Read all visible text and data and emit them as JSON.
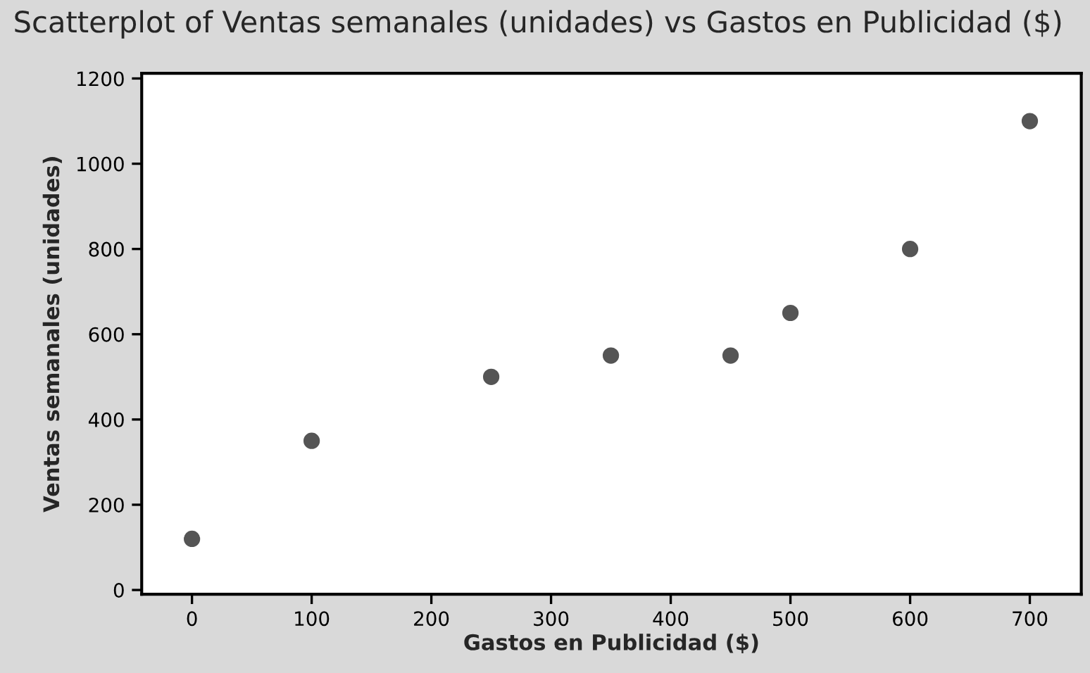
{
  "chart_data": {
    "type": "scatter",
    "title": "Scatterplot of Ventas semanales (unidades) vs Gastos en Publicidad ($)",
    "xlabel": "Gastos en Publicidad ($)",
    "ylabel": "Ventas semanales (unidades)",
    "series": [
      {
        "color": "#555555",
        "x": [
          0,
          100,
          250,
          350,
          450,
          500,
          600,
          700
        ],
        "values": [
          120,
          350,
          500,
          550,
          550,
          650,
          800,
          1100
        ]
      }
    ],
    "xlim": [
      -42,
      743
    ],
    "ylim": [
      -10,
      1212
    ],
    "xticks": [
      0,
      100,
      200,
      300,
      400,
      500,
      600,
      700
    ],
    "yticks": [
      0,
      200,
      400,
      600,
      800,
      1000,
      1200
    ],
    "marker": "circle",
    "grid": false,
    "legend": false
  }
}
